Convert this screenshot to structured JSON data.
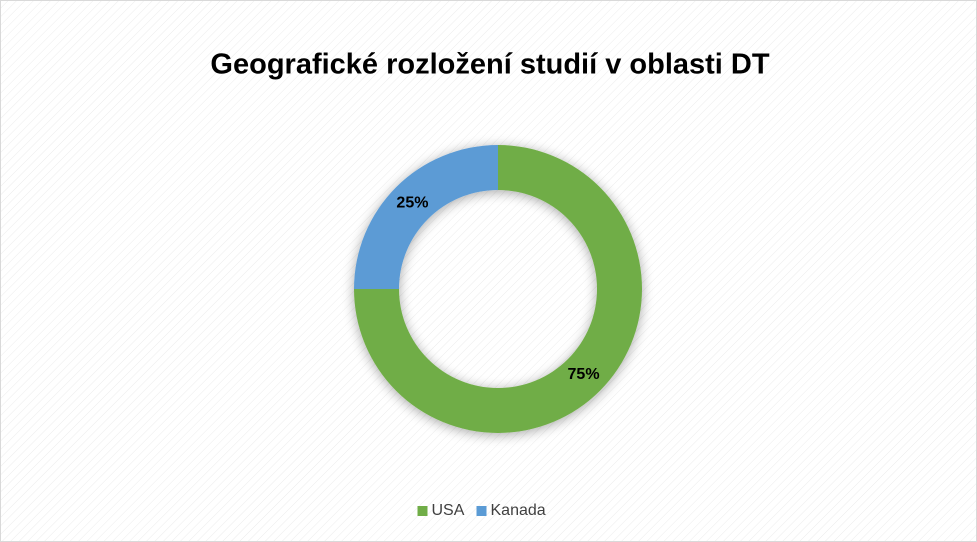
{
  "chart_data": {
    "type": "pie",
    "title": "Geografické rozložení studií v oblasti DT",
    "categories": [
      "USA",
      "Kanada"
    ],
    "values": [
      75,
      25
    ],
    "value_labels": [
      "75%",
      "25%"
    ],
    "colors": [
      "#70ad47",
      "#5b9bd5"
    ],
    "legend": "bottom"
  }
}
